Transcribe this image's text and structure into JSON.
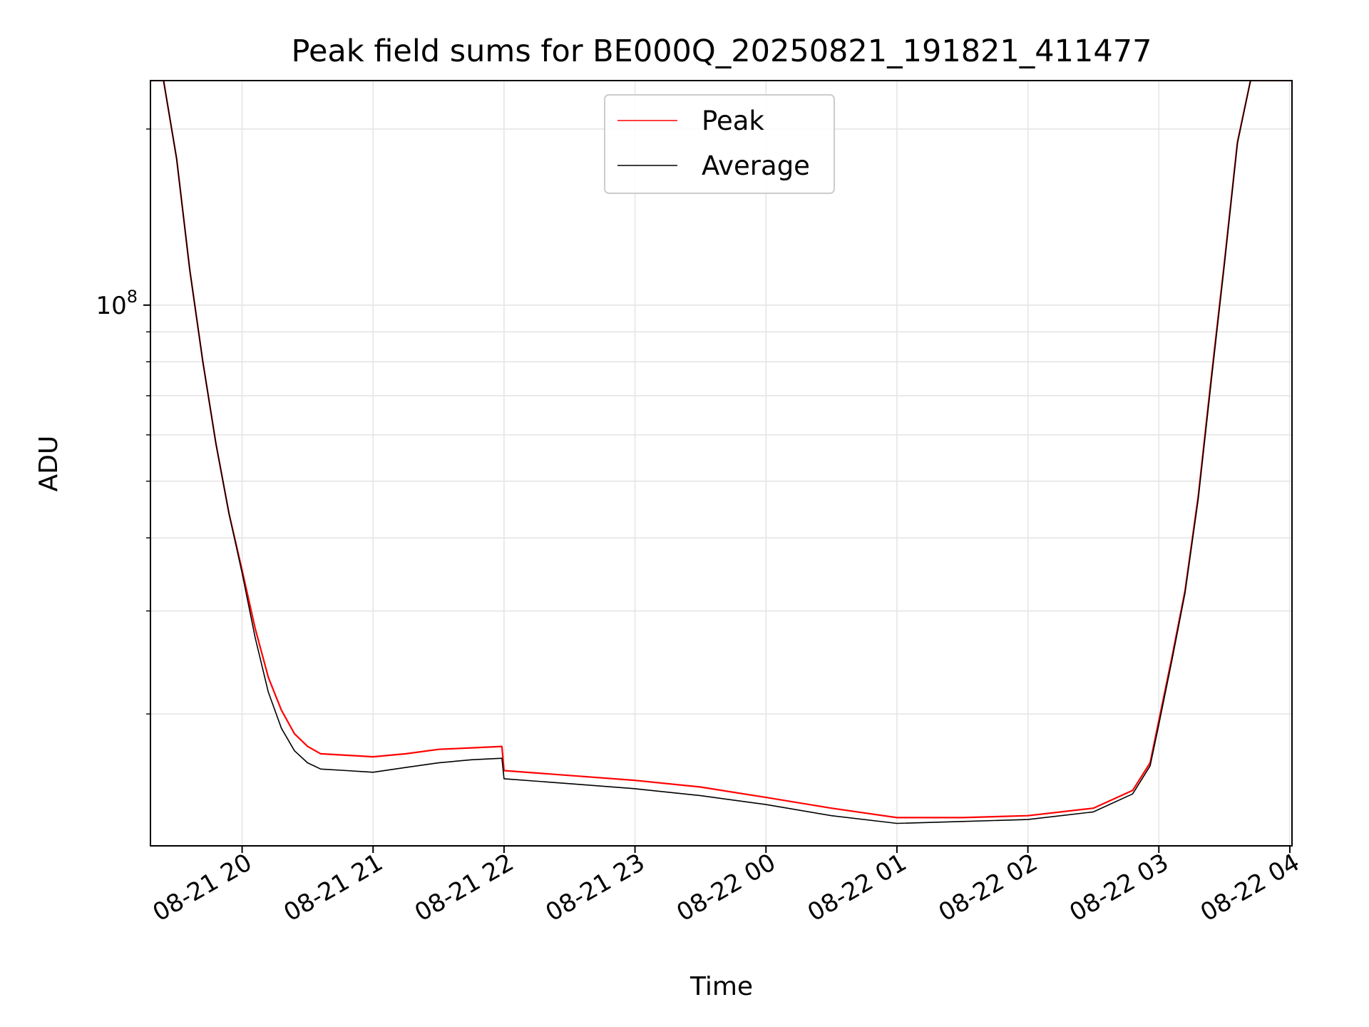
{
  "chart_data": {
    "type": "line",
    "title": "Peak field sums for BE000Q_20250821_191821_411477",
    "xlabel": "Time",
    "ylabel": "ADU",
    "yscale": "log",
    "grid": true,
    "legend_position": "top-center",
    "xlim": [
      "2025-08-21 19:18",
      "2025-08-22 04:01"
    ],
    "ylim": [
      11900000,
      242000000
    ],
    "x_ticks": [
      "08-21 20",
      "08-21 21",
      "08-21 22",
      "08-21 23",
      "08-22 00",
      "08-22 01",
      "08-22 02",
      "08-22 03",
      "08-22 04"
    ],
    "y_ticks": [
      {
        "label_base": "10",
        "label_exp": "8",
        "value": 100000000
      }
    ],
    "series": [
      {
        "name": "Peak",
        "color": "#ff0000",
        "points": [
          [
            "2025-08-21 19:18",
            242000000
          ],
          [
            "2025-08-21 19:24",
            242000000
          ],
          [
            "2025-08-21 19:30",
            178000000
          ],
          [
            "2025-08-21 19:36",
            115000000
          ],
          [
            "2025-08-21 19:42",
            80000000
          ],
          [
            "2025-08-21 19:48",
            58000000
          ],
          [
            "2025-08-21 19:54",
            44000000
          ],
          [
            "2025-08-21 20:00",
            35200000
          ],
          [
            "2025-08-21 20:06",
            28000000
          ],
          [
            "2025-08-21 20:12",
            23100000
          ],
          [
            "2025-08-21 20:18",
            20300000
          ],
          [
            "2025-08-21 20:24",
            18500000
          ],
          [
            "2025-08-21 20:30",
            17600000
          ],
          [
            "2025-08-21 20:36",
            17100000
          ],
          [
            "2025-08-21 20:48",
            17000000
          ],
          [
            "2025-08-21 21:00",
            16900000
          ],
          [
            "2025-08-21 21:15",
            17100000
          ],
          [
            "2025-08-21 21:30",
            17400000
          ],
          [
            "2025-08-21 21:45",
            17500000
          ],
          [
            "2025-08-21 21:59",
            17600000
          ],
          [
            "2025-08-21 22:00",
            16000000
          ],
          [
            "2025-08-21 22:30",
            15700000
          ],
          [
            "2025-08-21 23:00",
            15400000
          ],
          [
            "2025-08-21 23:30",
            15000000
          ],
          [
            "2025-08-22 00:00",
            14400000
          ],
          [
            "2025-08-22 00:30",
            13800000
          ],
          [
            "2025-08-22 01:00",
            13300000
          ],
          [
            "2025-08-22 01:30",
            13300000
          ],
          [
            "2025-08-22 02:00",
            13400000
          ],
          [
            "2025-08-22 02:30",
            13800000
          ],
          [
            "2025-08-22 02:48",
            14800000
          ],
          [
            "2025-08-22 02:56",
            16500000
          ],
          [
            "2025-08-22 03:00",
            19500000
          ],
          [
            "2025-08-22 03:06",
            25000000
          ],
          [
            "2025-08-22 03:12",
            32500000
          ],
          [
            "2025-08-22 03:18",
            47000000
          ],
          [
            "2025-08-22 03:24",
            75000000
          ],
          [
            "2025-08-22 03:30",
            118000000
          ],
          [
            "2025-08-22 03:36",
            190000000
          ],
          [
            "2025-08-22 03:42",
            242000000
          ],
          [
            "2025-08-22 04:01",
            242000000
          ]
        ]
      },
      {
        "name": "Average",
        "color": "#000000",
        "points": [
          [
            "2025-08-21 19:18",
            242000000
          ],
          [
            "2025-08-21 19:24",
            242000000
          ],
          [
            "2025-08-21 19:30",
            178000000
          ],
          [
            "2025-08-21 19:36",
            115000000
          ],
          [
            "2025-08-21 19:42",
            80000000
          ],
          [
            "2025-08-21 19:48",
            58000000
          ],
          [
            "2025-08-21 19:54",
            44000000
          ],
          [
            "2025-08-21 20:00",
            34800000
          ],
          [
            "2025-08-21 20:06",
            27000000
          ],
          [
            "2025-08-21 20:12",
            21800000
          ],
          [
            "2025-08-21 20:18",
            18900000
          ],
          [
            "2025-08-21 20:24",
            17300000
          ],
          [
            "2025-08-21 20:30",
            16500000
          ],
          [
            "2025-08-21 20:36",
            16100000
          ],
          [
            "2025-08-21 20:48",
            16000000
          ],
          [
            "2025-08-21 21:00",
            15900000
          ],
          [
            "2025-08-21 21:15",
            16200000
          ],
          [
            "2025-08-21 21:30",
            16500000
          ],
          [
            "2025-08-21 21:45",
            16700000
          ],
          [
            "2025-08-21 21:59",
            16800000
          ],
          [
            "2025-08-21 22:00",
            15500000
          ],
          [
            "2025-08-21 22:30",
            15200000
          ],
          [
            "2025-08-21 23:00",
            14900000
          ],
          [
            "2025-08-21 23:30",
            14500000
          ],
          [
            "2025-08-22 00:00",
            14000000
          ],
          [
            "2025-08-22 00:30",
            13400000
          ],
          [
            "2025-08-22 01:00",
            13000000
          ],
          [
            "2025-08-22 01:30",
            13100000
          ],
          [
            "2025-08-22 02:00",
            13200000
          ],
          [
            "2025-08-22 02:30",
            13600000
          ],
          [
            "2025-08-22 02:48",
            14600000
          ],
          [
            "2025-08-22 02:56",
            16300000
          ],
          [
            "2025-08-22 03:00",
            19200000
          ],
          [
            "2025-08-22 03:06",
            24700000
          ],
          [
            "2025-08-22 03:12",
            32200000
          ],
          [
            "2025-08-22 03:18",
            46500000
          ],
          [
            "2025-08-22 03:24",
            74000000
          ],
          [
            "2025-08-22 03:30",
            117000000
          ],
          [
            "2025-08-22 03:36",
            189000000
          ],
          [
            "2025-08-22 03:42",
            242000000
          ],
          [
            "2025-08-22 04:01",
            242000000
          ]
        ]
      }
    ]
  }
}
